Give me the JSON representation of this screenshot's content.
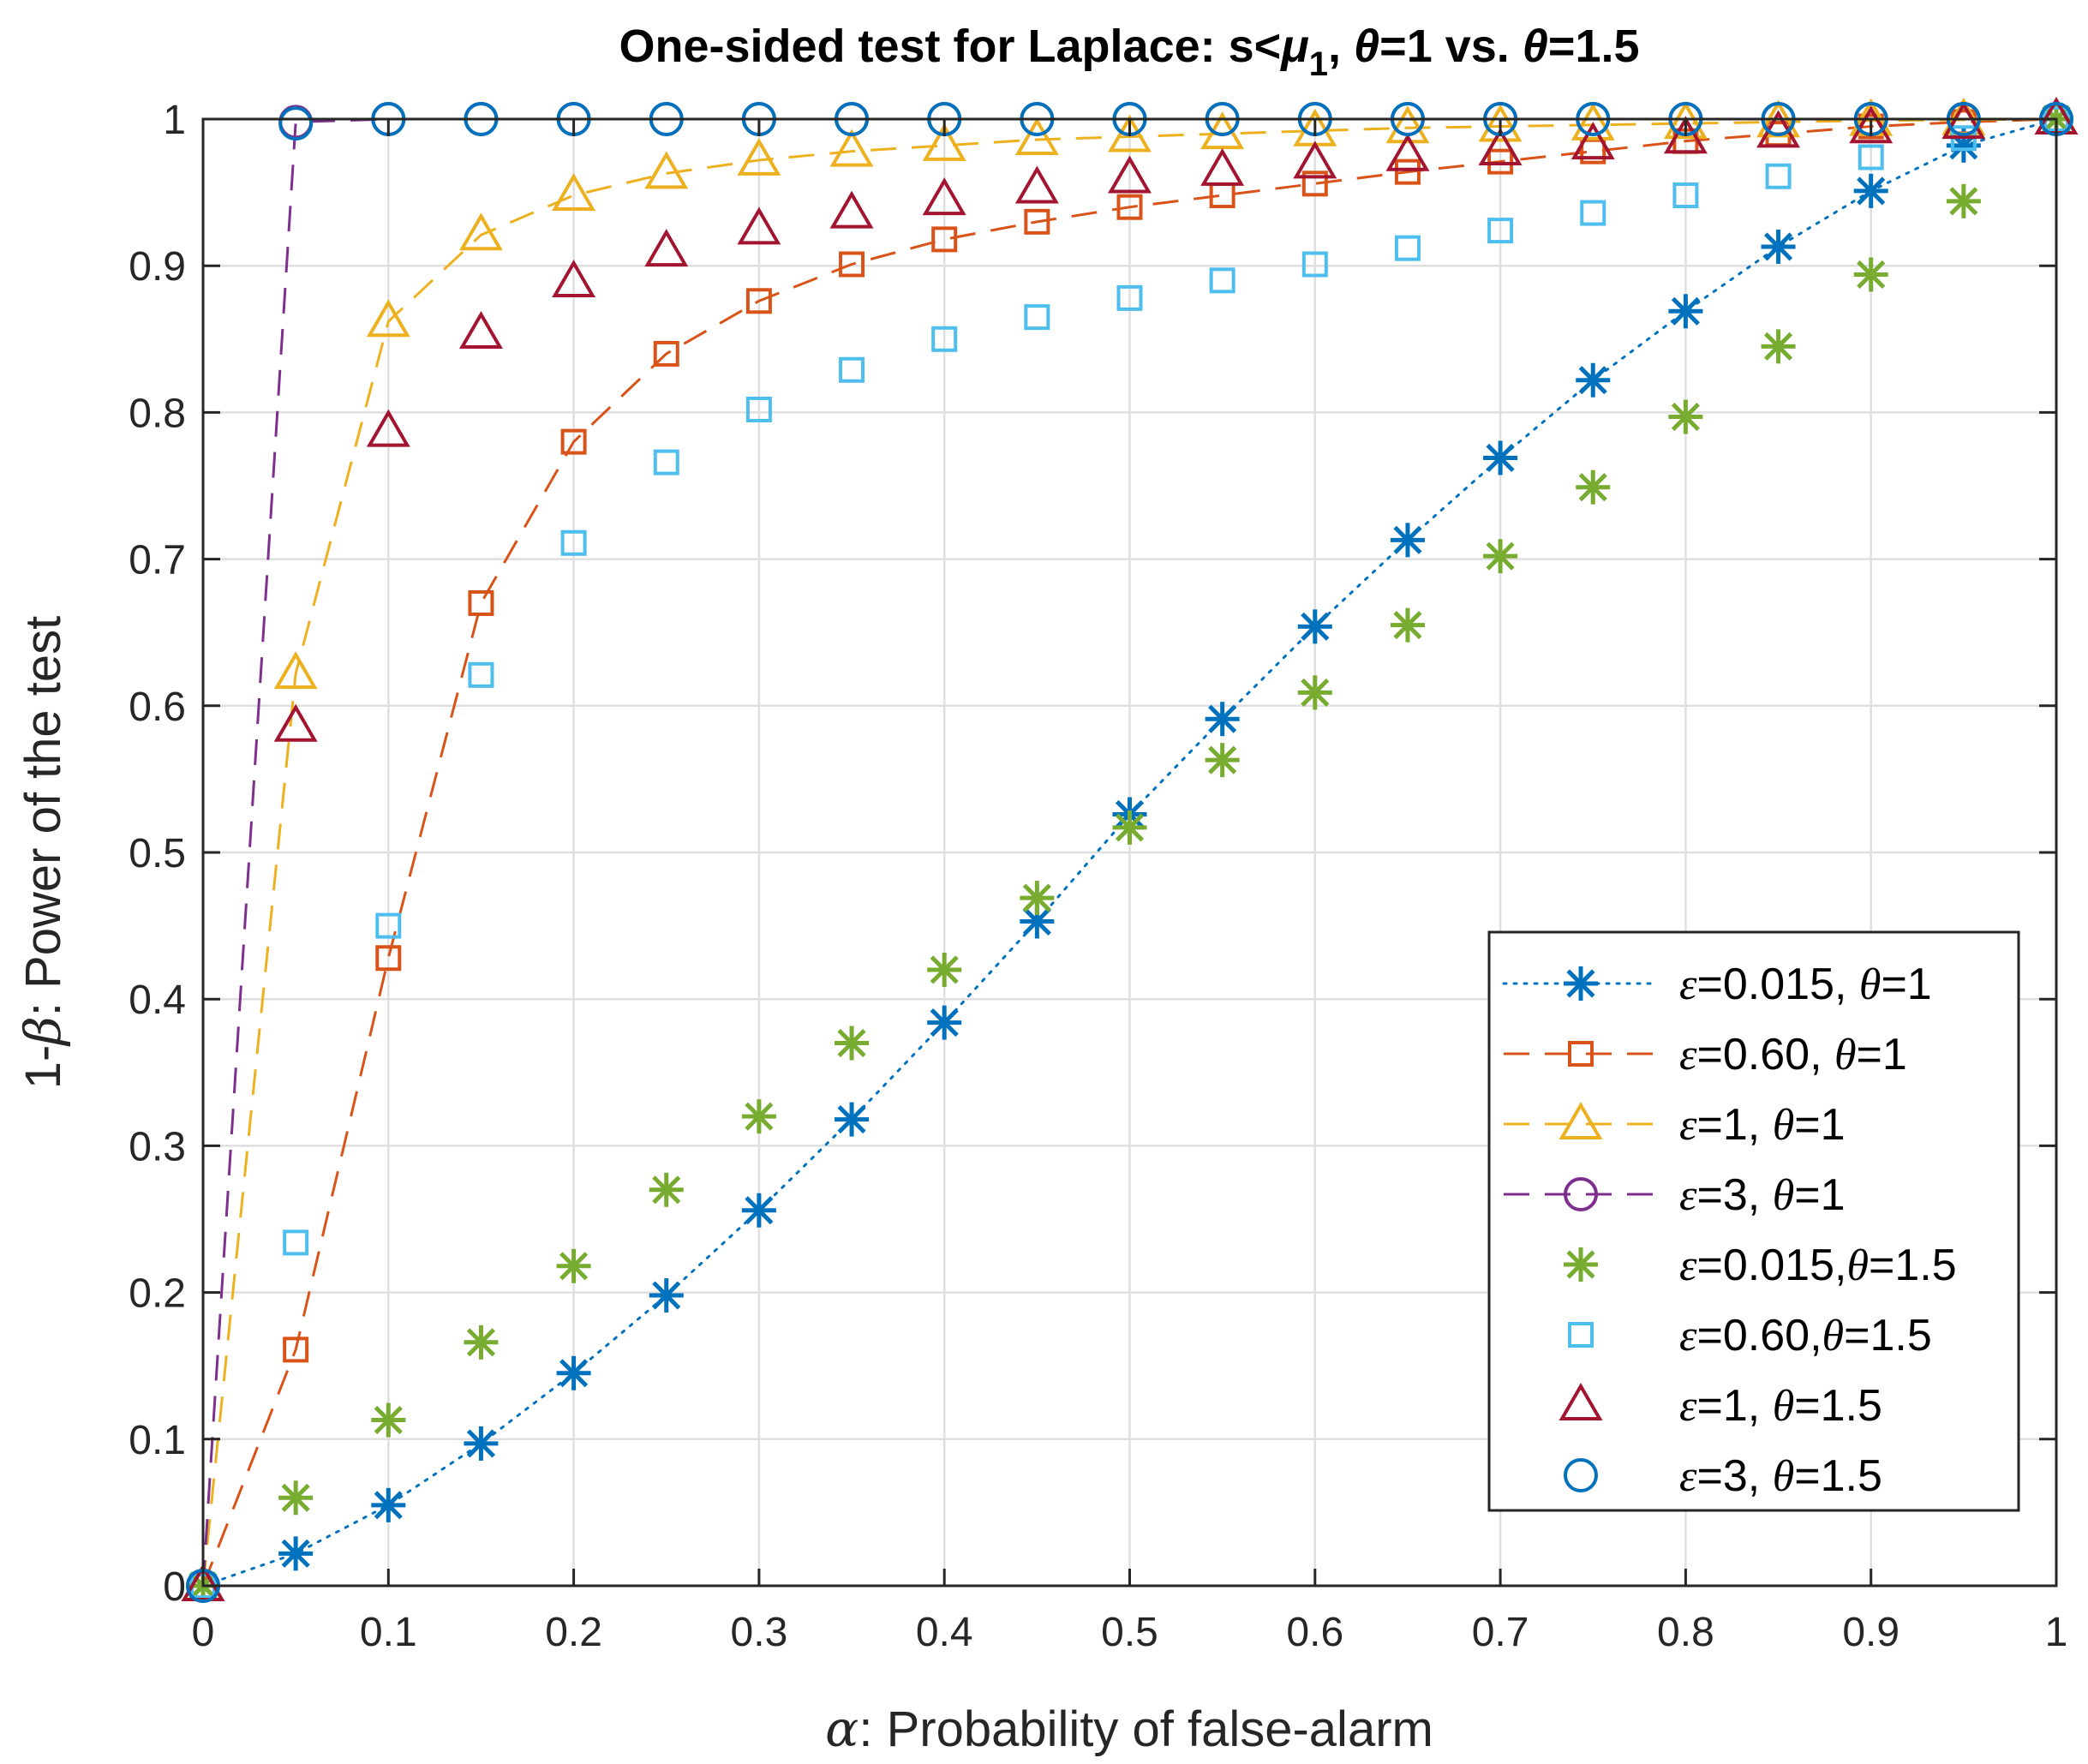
{
  "chart_data": {
    "type": "line",
    "title": "One-sided test for Laplace: s<μ₁, θ=1 vs. θ=1.5",
    "title_parts": {
      "prefix": "One-sided test for Laplace: s<",
      "mu": "μ",
      "sub": "1",
      "suffix1": ", ",
      "theta1": "θ",
      "mid": "=1 vs. ",
      "theta2": "θ",
      "end": "=1.5"
    },
    "xlabel": "α: Probability of false-alarm",
    "xlabel_parts": {
      "sym": "α",
      "text": ": Probability of false-alarm"
    },
    "ylabel": "1-β: Power of the test",
    "ylabel_parts": {
      "pre": "1-",
      "sym": "β",
      "text": ": Power of the test"
    },
    "xlim": [
      0,
      1
    ],
    "ylim": [
      0,
      1
    ],
    "xticks": [
      "0",
      "0.1",
      "0.2",
      "0.3",
      "0.4",
      "0.5",
      "0.6",
      "0.7",
      "0.8",
      "0.9",
      "1"
    ],
    "yticks": [
      "0",
      "0.1",
      "0.2",
      "0.3",
      "0.4",
      "0.5",
      "0.6",
      "0.7",
      "0.8",
      "0.9",
      "1"
    ],
    "grid": true,
    "legend_position": "bottom-right",
    "x": [
      0,
      0.05,
      0.1,
      0.15,
      0.2,
      0.25,
      0.3,
      0.35,
      0.4,
      0.45,
      0.5,
      0.55,
      0.6,
      0.65,
      0.7,
      0.75,
      0.8,
      0.85,
      0.9,
      0.95,
      1
    ],
    "series": [
      {
        "name": "ε=0.015, θ=1",
        "eps": "0.015",
        "theta": "1",
        "sep": ", ",
        "color": "#0072BD",
        "marker": "asterisk",
        "line": "dotted",
        "values": [
          0,
          0.022,
          0.055,
          0.097,
          0.145,
          0.198,
          0.256,
          0.318,
          0.384,
          0.453,
          0.526,
          0.591,
          0.654,
          0.713,
          0.769,
          0.822,
          0.869,
          0.913,
          0.951,
          0.982,
          1.0
        ]
      },
      {
        "name": "ε=0.60, θ=1",
        "eps": "0.60",
        "theta": "1",
        "sep": ", ",
        "color": "#D95319",
        "marker": "square",
        "line": "dashed",
        "values": [
          0,
          0.161,
          0.428,
          0.67,
          0.78,
          0.84,
          0.876,
          0.901,
          0.918,
          0.93,
          0.94,
          0.948,
          0.956,
          0.964,
          0.971,
          0.978,
          0.985,
          0.99,
          0.995,
          0.998,
          1.0
        ]
      },
      {
        "name": "ε=1, θ=1",
        "eps": "1",
        "theta": "1",
        "sep": ", ",
        "color": "#EDB120",
        "marker": "triangle",
        "line": "dashed",
        "values": [
          0,
          0.622,
          0.862,
          0.921,
          0.948,
          0.963,
          0.972,
          0.978,
          0.982,
          0.986,
          0.988,
          0.99,
          0.992,
          0.994,
          0.995,
          0.996,
          0.997,
          0.998,
          0.999,
          0.9995,
          1.0
        ]
      },
      {
        "name": "ε=3, θ=1",
        "eps": "3",
        "theta": "1",
        "sep": ", ",
        "color": "#7E2F8E",
        "marker": "circle",
        "line": "dashed",
        "values": [
          0,
          0.998,
          1.0,
          1.0,
          1.0,
          1.0,
          1.0,
          1.0,
          1.0,
          1.0,
          1.0,
          1.0,
          1.0,
          1.0,
          1.0,
          1.0,
          1.0,
          1.0,
          1.0,
          1.0,
          1.0
        ]
      },
      {
        "name": "ε=0.015,θ=1.5",
        "eps": "0.015",
        "theta": "1.5",
        "sep": ",",
        "color": "#77AC30",
        "marker": "asterisk",
        "line": "none",
        "values": [
          0,
          0.06,
          0.113,
          0.166,
          0.218,
          0.27,
          0.32,
          0.37,
          0.42,
          0.469,
          0.517,
          0.563,
          0.609,
          0.655,
          0.702,
          0.749,
          0.797,
          0.845,
          0.894,
          0.944,
          1.0
        ]
      },
      {
        "name": "ε=0.60,θ=1.5",
        "eps": "0.60",
        "theta": "1.5",
        "sep": ",",
        "color": "#4DBEEE",
        "marker": "square",
        "line": "none",
        "values": [
          0,
          0.234,
          0.45,
          0.621,
          0.711,
          0.766,
          0.802,
          0.829,
          0.85,
          0.865,
          0.878,
          0.89,
          0.901,
          0.912,
          0.924,
          0.936,
          0.948,
          0.961,
          0.974,
          0.987,
          1.0
        ]
      },
      {
        "name": "ε=1, θ=1.5",
        "eps": "1",
        "theta": "1.5",
        "sep": ", ",
        "color": "#A2142F",
        "marker": "triangle",
        "line": "none",
        "values": [
          0,
          0.586,
          0.787,
          0.854,
          0.889,
          0.91,
          0.925,
          0.936,
          0.945,
          0.953,
          0.96,
          0.965,
          0.97,
          0.975,
          0.979,
          0.983,
          0.987,
          0.991,
          0.994,
          0.997,
          1.0
        ]
      },
      {
        "name": "ε=3, θ=1.5",
        "eps": "3",
        "theta": "1.5",
        "sep": ", ",
        "color": "#0072BD",
        "marker": "circle",
        "line": "none",
        "values": [
          0,
          0.997,
          1.0,
          1.0,
          1.0,
          1.0,
          1.0,
          1.0,
          1.0,
          1.0,
          1.0,
          1.0,
          1.0,
          1.0,
          1.0,
          1.0,
          1.0,
          1.0,
          1.0,
          1.0,
          1.0
        ]
      }
    ]
  }
}
